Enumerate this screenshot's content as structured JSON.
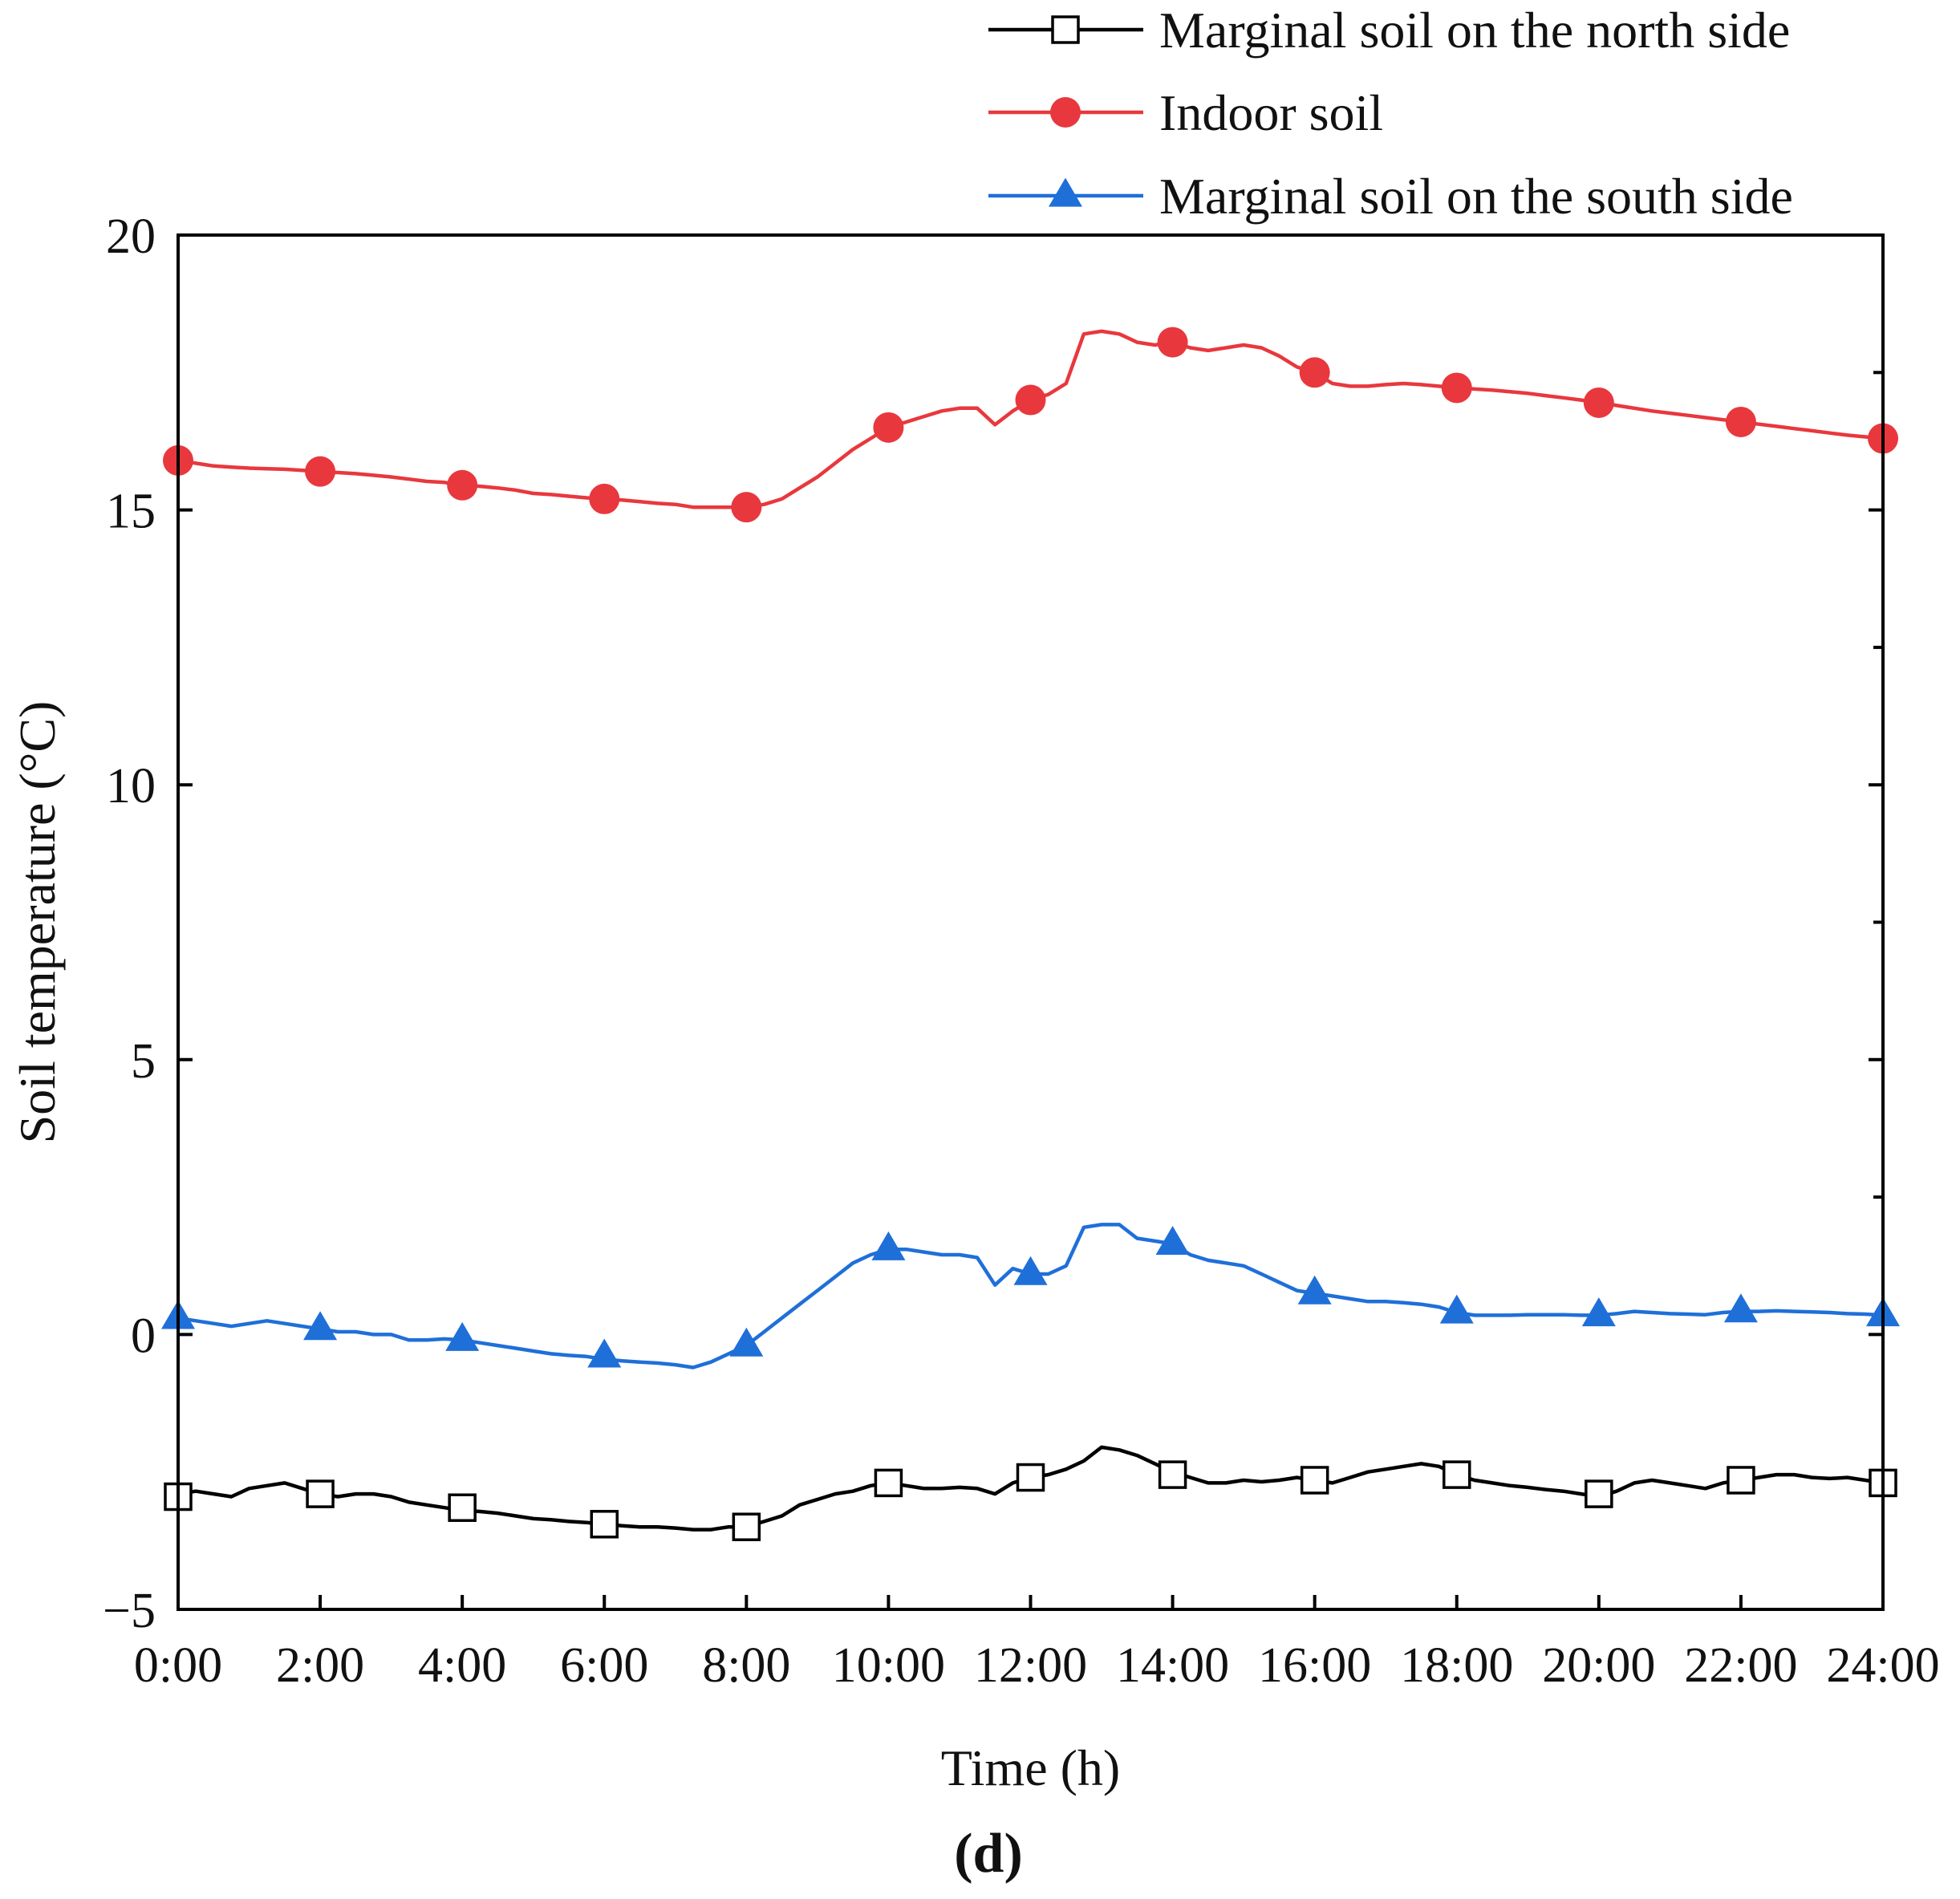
{
  "chart_data": {
    "type": "line",
    "panel_label": "(d)",
    "xlabel": "Time (h)",
    "ylabel": "Soil temperature (°C)",
    "xlim": [
      0,
      24
    ],
    "ylim": [
      -5,
      20
    ],
    "x_ticks": [
      {
        "value": 0,
        "label": "0:00"
      },
      {
        "value": 2,
        "label": "2:00"
      },
      {
        "value": 4,
        "label": "4:00"
      },
      {
        "value": 6,
        "label": "6:00"
      },
      {
        "value": 8,
        "label": "8:00"
      },
      {
        "value": 10,
        "label": "10:00"
      },
      {
        "value": 12,
        "label": "12:00"
      },
      {
        "value": 14,
        "label": "14:00"
      },
      {
        "value": 16,
        "label": "16:00"
      },
      {
        "value": 18,
        "label": "18:00"
      },
      {
        "value": 20,
        "label": "20:00"
      },
      {
        "value": 22,
        "label": "22:00"
      },
      {
        "value": 24,
        "label": "24:00"
      }
    ],
    "y_ticks": [
      {
        "value": -5,
        "label": "−5"
      },
      {
        "value": 0,
        "label": "0"
      },
      {
        "value": 5,
        "label": "5"
      },
      {
        "value": 10,
        "label": "10"
      },
      {
        "value": 15,
        "label": "15"
      },
      {
        "value": 20,
        "label": "20"
      }
    ],
    "legend_position": "top-right",
    "series": [
      {
        "name": "Marginal soil on the north side",
        "color": "#000000",
        "marker": "open-square",
        "x": [
          0,
          0.25,
          0.5,
          0.75,
          1,
          1.25,
          1.5,
          1.75,
          2,
          2.25,
          2.5,
          2.75,
          3,
          3.25,
          3.5,
          3.75,
          4,
          4.25,
          4.5,
          4.75,
          5,
          5.25,
          5.5,
          5.75,
          6,
          6.25,
          6.5,
          6.75,
          7,
          7.25,
          7.5,
          7.75,
          8,
          8.25,
          8.5,
          8.75,
          9,
          9.25,
          9.5,
          9.75,
          10,
          10.25,
          10.5,
          10.75,
          11,
          11.25,
          11.5,
          11.75,
          12,
          12.25,
          12.5,
          12.75,
          13,
          13.25,
          13.5,
          13.75,
          14,
          14.25,
          14.5,
          14.75,
          15,
          15.25,
          15.5,
          15.75,
          16,
          16.25,
          16.5,
          16.75,
          17,
          17.25,
          17.5,
          17.75,
          18,
          18.25,
          18.5,
          18.75,
          19,
          19.25,
          19.5,
          19.75,
          20,
          20.25,
          20.5,
          20.75,
          21,
          21.25,
          21.5,
          21.75,
          22,
          22.25,
          22.5,
          22.75,
          23,
          23.25,
          23.5,
          23.75,
          24
        ],
        "y": [
          -2.9,
          -2.85,
          -2.9,
          -2.95,
          -2.8,
          -2.75,
          -2.7,
          -2.8,
          -2.9,
          -2.95,
          -2.9,
          -2.9,
          -2.95,
          -3.05,
          -3.1,
          -3.15,
          -3.2,
          -3.22,
          -3.25,
          -3.3,
          -3.35,
          -3.37,
          -3.4,
          -3.42,
          -3.45,
          -3.48,
          -3.5,
          -3.5,
          -3.52,
          -3.55,
          -3.55,
          -3.5,
          -3.5,
          -3.4,
          -3.3,
          -3.1,
          -3.0,
          -2.9,
          -2.85,
          -2.75,
          -2.7,
          -2.75,
          -2.8,
          -2.8,
          -2.78,
          -2.8,
          -2.9,
          -2.7,
          -2.6,
          -2.55,
          -2.45,
          -2.3,
          -2.05,
          -2.1,
          -2.2,
          -2.35,
          -2.5,
          -2.6,
          -2.7,
          -2.7,
          -2.65,
          -2.68,
          -2.65,
          -2.6,
          -2.65,
          -2.7,
          -2.6,
          -2.5,
          -2.45,
          -2.4,
          -2.35,
          -2.4,
          -2.55,
          -2.65,
          -2.7,
          -2.75,
          -2.78,
          -2.82,
          -2.85,
          -2.9,
          -2.95,
          -2.85,
          -2.7,
          -2.65,
          -2.7,
          -2.75,
          -2.8,
          -2.7,
          -2.65,
          -2.6,
          -2.55,
          -2.55,
          -2.6,
          -2.62,
          -2.6,
          -2.65,
          -2.7
        ],
        "marker_x": [
          0,
          2,
          4,
          6,
          8,
          10,
          12,
          14,
          16,
          18,
          20,
          22,
          24
        ],
        "marker_y": [
          -2.95,
          -2.9,
          -3.15,
          -3.45,
          -3.5,
          -2.7,
          -2.6,
          -2.55,
          -2.65,
          -2.55,
          -2.9,
          -2.65,
          -2.7
        ]
      },
      {
        "name": "Indoor soil",
        "color": "#e8383d",
        "marker": "filled-circle",
        "x": [
          0,
          0.25,
          0.5,
          0.75,
          1,
          1.25,
          1.5,
          1.75,
          2,
          2.25,
          2.5,
          2.75,
          3,
          3.25,
          3.5,
          3.75,
          4,
          4.25,
          4.5,
          4.75,
          5,
          5.25,
          5.5,
          5.75,
          6,
          6.25,
          6.5,
          6.75,
          7,
          7.25,
          7.5,
          7.75,
          8,
          8.25,
          8.5,
          8.75,
          9,
          9.25,
          9.5,
          9.75,
          10,
          10.25,
          10.5,
          10.75,
          11,
          11.25,
          11.5,
          11.75,
          12,
          12.25,
          12.5,
          12.75,
          13,
          13.25,
          13.5,
          13.75,
          14,
          14.25,
          14.5,
          14.75,
          15,
          15.25,
          15.5,
          15.75,
          16,
          16.25,
          16.5,
          16.75,
          17,
          17.25,
          17.5,
          17.75,
          18,
          18.25,
          18.5,
          18.75,
          19,
          19.25,
          19.5,
          19.75,
          20,
          20.25,
          20.5,
          20.75,
          21,
          21.25,
          21.5,
          21.75,
          22,
          22.25,
          22.5,
          22.75,
          23,
          23.25,
          23.5,
          23.75,
          24
        ],
        "y": [
          15.9,
          15.85,
          15.8,
          15.78,
          15.76,
          15.75,
          15.74,
          15.72,
          15.7,
          15.68,
          15.66,
          15.63,
          15.6,
          15.56,
          15.52,
          15.5,
          15.45,
          15.43,
          15.4,
          15.36,
          15.3,
          15.28,
          15.25,
          15.22,
          15.2,
          15.18,
          15.15,
          15.12,
          15.1,
          15.05,
          15.05,
          15.05,
          15.05,
          15.1,
          15.2,
          15.4,
          15.6,
          15.85,
          16.1,
          16.3,
          16.5,
          16.6,
          16.7,
          16.8,
          16.85,
          16.85,
          16.55,
          16.8,
          17.0,
          17.1,
          17.3,
          18.2,
          18.25,
          18.2,
          18.05,
          18.0,
          18.05,
          17.95,
          17.9,
          17.95,
          18.0,
          17.95,
          17.8,
          17.6,
          17.5,
          17.3,
          17.25,
          17.25,
          17.28,
          17.3,
          17.28,
          17.25,
          17.22,
          17.2,
          17.18,
          17.15,
          17.12,
          17.08,
          17.04,
          17.0,
          16.95,
          16.9,
          16.85,
          16.8,
          16.76,
          16.72,
          16.68,
          16.64,
          16.6,
          16.56,
          16.52,
          16.48,
          16.44,
          16.4,
          16.36,
          16.33,
          16.3
        ],
        "marker_x": [
          0,
          2,
          4,
          6,
          8,
          10,
          12,
          14,
          16,
          18,
          20,
          22,
          24
        ],
        "marker_y": [
          15.9,
          15.7,
          15.45,
          15.2,
          15.05,
          16.5,
          17.0,
          18.05,
          17.5,
          17.22,
          16.95,
          16.6,
          16.3
        ]
      },
      {
        "name": "Marginal soil on the south side",
        "color": "#1f6fd9",
        "marker": "filled-triangle",
        "x": [
          0,
          0.25,
          0.5,
          0.75,
          1,
          1.25,
          1.5,
          1.75,
          2,
          2.25,
          2.5,
          2.75,
          3,
          3.25,
          3.5,
          3.75,
          4,
          4.25,
          4.5,
          4.75,
          5,
          5.25,
          5.5,
          5.75,
          6,
          6.25,
          6.5,
          6.75,
          7,
          7.25,
          7.5,
          7.75,
          8,
          8.25,
          8.5,
          8.75,
          9,
          9.25,
          9.5,
          9.75,
          10,
          10.25,
          10.5,
          10.75,
          11,
          11.25,
          11.5,
          11.75,
          12,
          12.25,
          12.5,
          12.75,
          13,
          13.25,
          13.5,
          13.75,
          14,
          14.25,
          14.5,
          14.75,
          15,
          15.25,
          15.5,
          15.75,
          16,
          16.25,
          16.5,
          16.75,
          17,
          17.25,
          17.5,
          17.75,
          18,
          18.25,
          18.5,
          18.75,
          19,
          19.25,
          19.5,
          19.75,
          20,
          20.25,
          20.5,
          20.75,
          21,
          21.25,
          21.5,
          21.75,
          22,
          22.25,
          22.5,
          22.75,
          23,
          23.25,
          23.5,
          23.75,
          24
        ],
        "y": [
          0.3,
          0.25,
          0.2,
          0.15,
          0.2,
          0.25,
          0.2,
          0.15,
          0.1,
          0.05,
          0.05,
          0.0,
          0.0,
          -0.1,
          -0.1,
          -0.08,
          -0.1,
          -0.15,
          -0.2,
          -0.25,
          -0.3,
          -0.35,
          -0.38,
          -0.4,
          -0.45,
          -0.48,
          -0.5,
          -0.52,
          -0.55,
          -0.6,
          -0.5,
          -0.35,
          -0.2,
          0.05,
          0.3,
          0.55,
          0.8,
          1.05,
          1.3,
          1.45,
          1.55,
          1.55,
          1.5,
          1.45,
          1.45,
          1.4,
          0.9,
          1.2,
          1.1,
          1.1,
          1.25,
          1.95,
          2.0,
          2.0,
          1.75,
          1.7,
          1.65,
          1.45,
          1.35,
          1.3,
          1.25,
          1.1,
          0.95,
          0.8,
          0.75,
          0.7,
          0.65,
          0.6,
          0.6,
          0.58,
          0.55,
          0.5,
          0.4,
          0.35,
          0.35,
          0.35,
          0.36,
          0.36,
          0.36,
          0.35,
          0.35,
          0.38,
          0.42,
          0.4,
          0.38,
          0.37,
          0.36,
          0.4,
          0.42,
          0.42,
          0.43,
          0.42,
          0.41,
          0.4,
          0.38,
          0.37,
          0.35
        ],
        "marker_x": [
          0,
          2,
          4,
          6,
          8,
          10,
          12,
          14,
          16,
          18,
          20,
          22,
          24
        ],
        "marker_y": [
          0.3,
          0.1,
          -0.1,
          -0.4,
          -0.2,
          1.55,
          1.1,
          1.65,
          0.75,
          0.4,
          0.35,
          0.42,
          0.35
        ]
      }
    ]
  }
}
